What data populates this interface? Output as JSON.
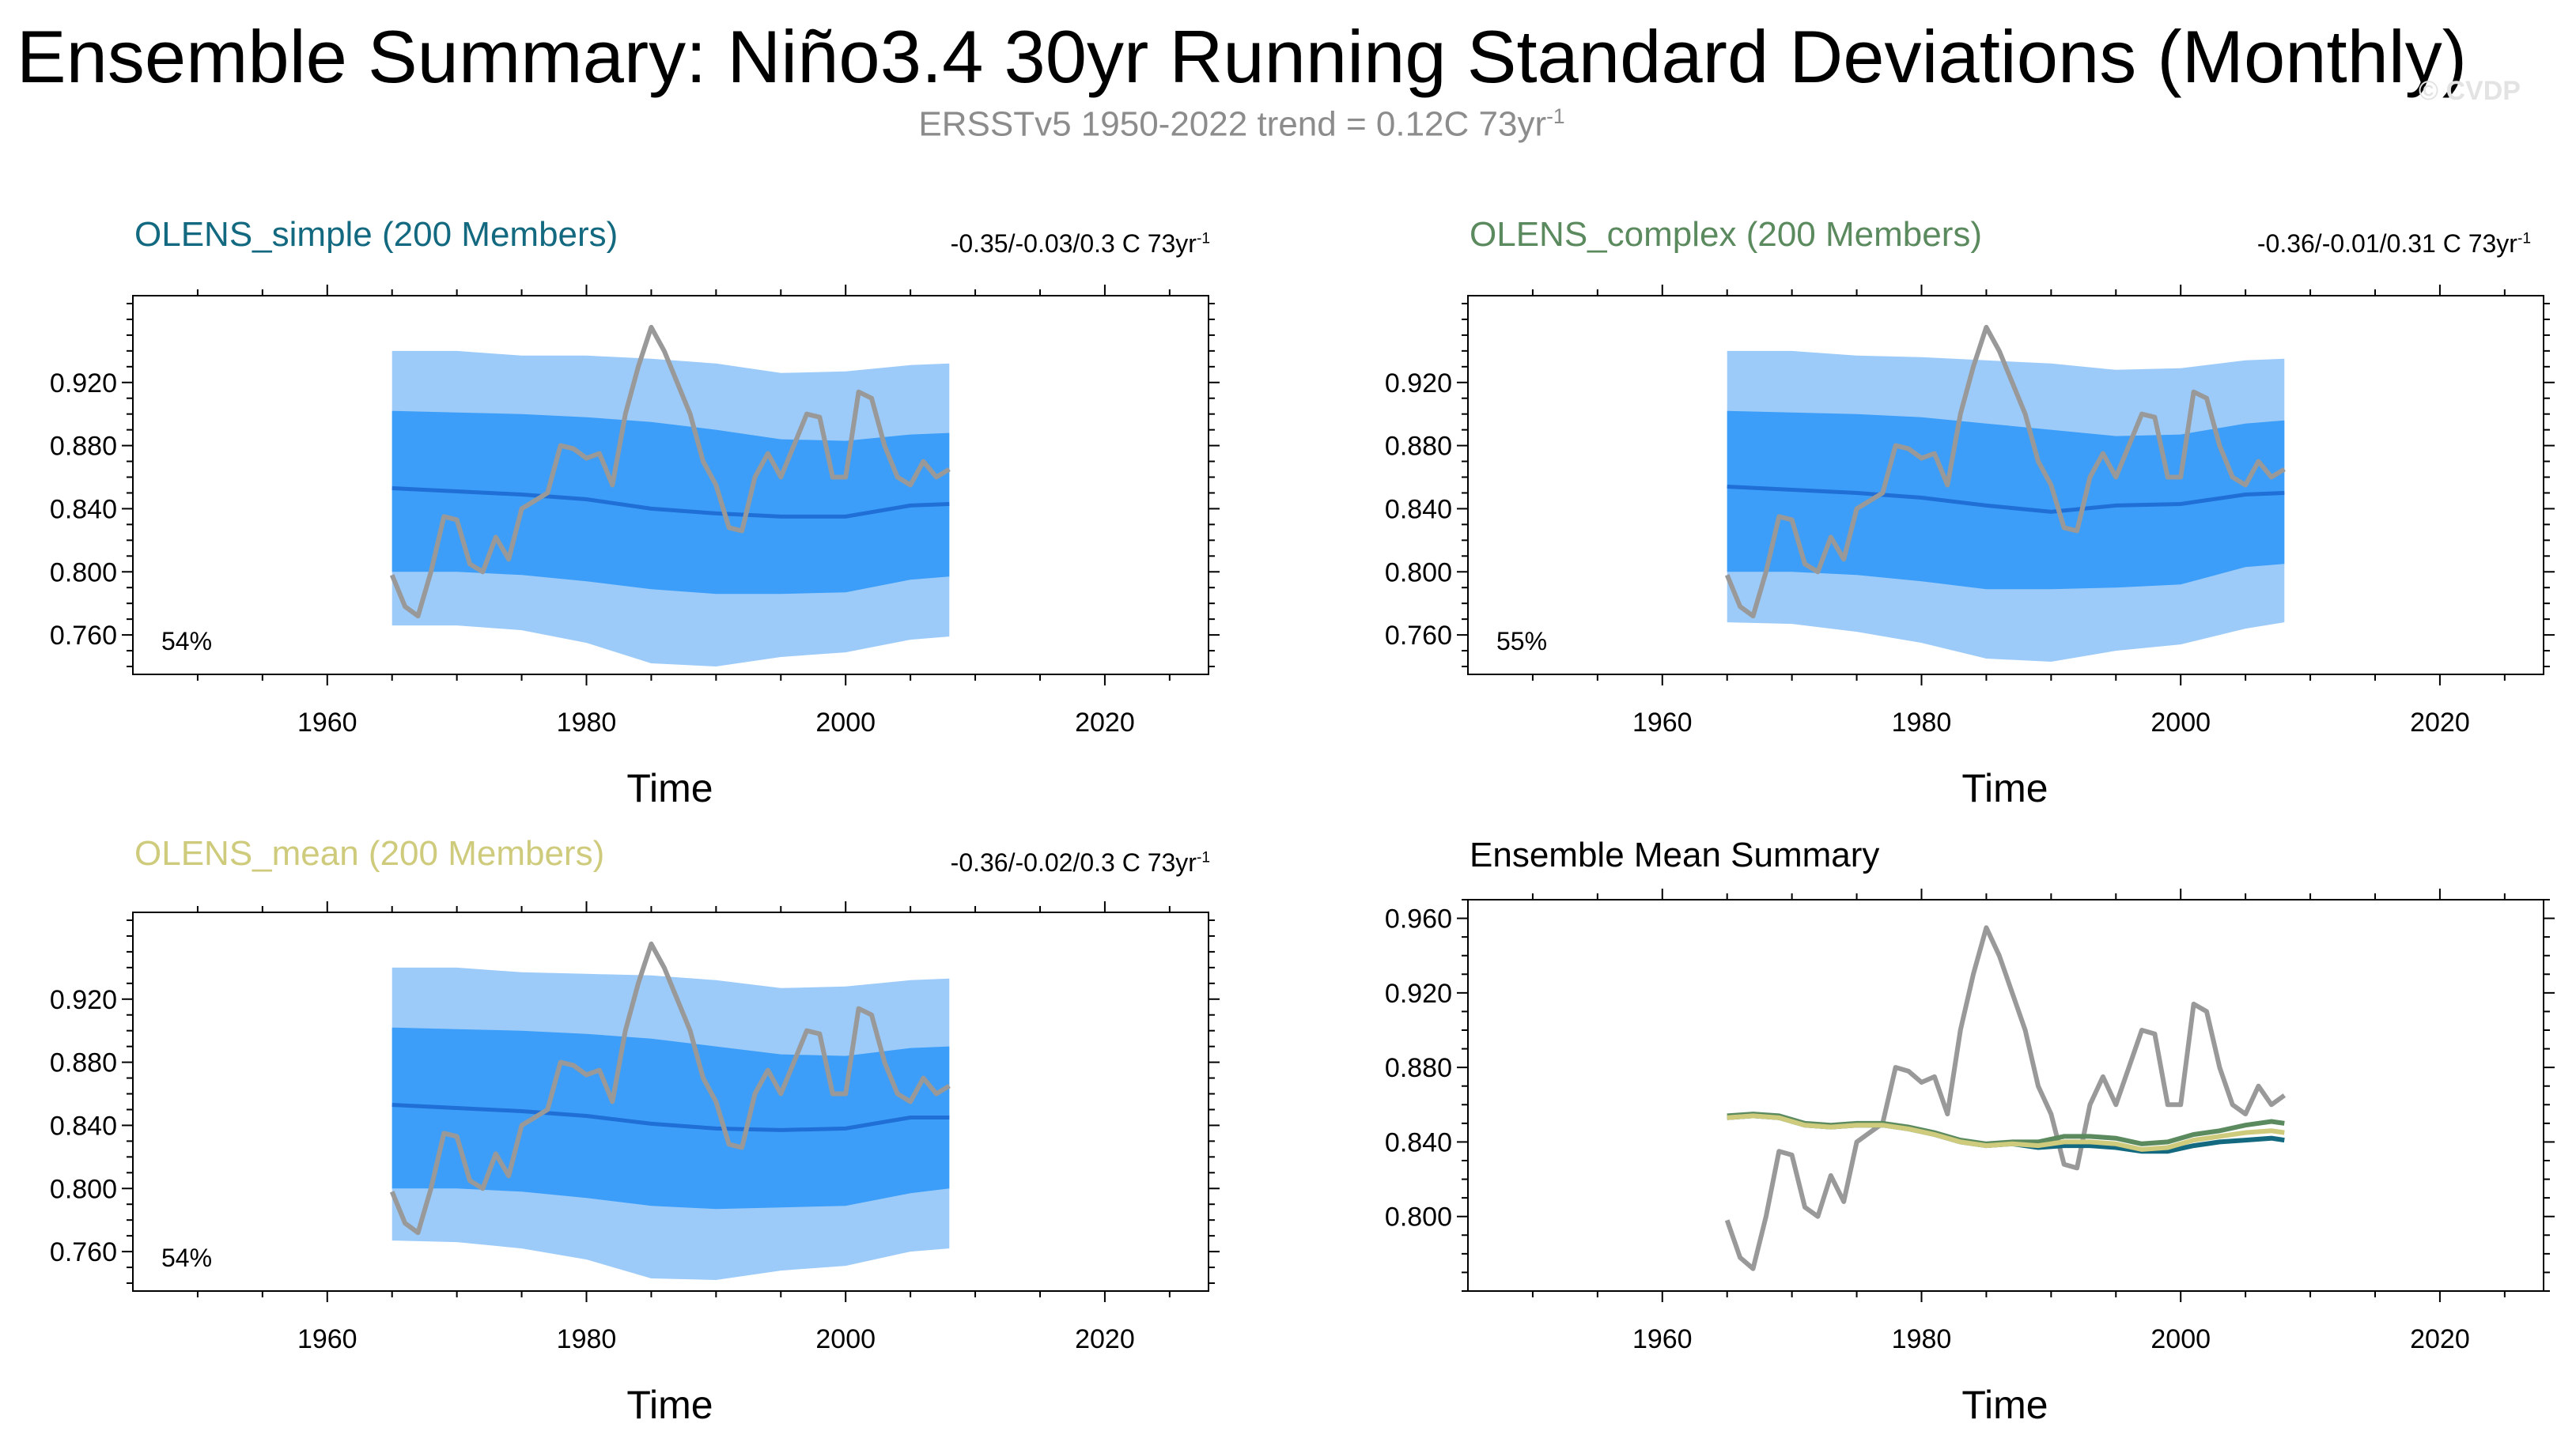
{
  "header": {
    "title": "Ensemble Summary: Niño3.4 30yr Running Standard Deviations (Monthly)",
    "subtitle_text": "ERSSTv5 1950-2022 trend = 0.12C 73yr",
    "subtitle_exp": "-1",
    "credit": "© CVDP"
  },
  "colors": {
    "outer_band": "#9ccbfa",
    "inner_band": "#3c9ef8",
    "ens_mean_line": "#1f6fd6",
    "obs": "#999999",
    "olens_simple": "#13697f",
    "olens_complex": "#5b8a5e",
    "olens_mean": "#cfcb7c"
  },
  "panels": [
    {
      "title": "OLENS_simple (200 Members)",
      "title_color": "#13697f",
      "stats": "-0.35/-0.03/0.3 C 73yr",
      "stats_exp": "-1",
      "percent": "54%",
      "xlabel": "Time"
    },
    {
      "title": "OLENS_complex (200 Members)",
      "title_color": "#5b8a5e",
      "stats": "-0.36/-0.01/0.31 C 73yr",
      "stats_exp": "-1",
      "percent": "55%",
      "xlabel": "Time"
    },
    {
      "title": "OLENS_mean (200 Members)",
      "title_color": "#cfcb7c",
      "stats": "-0.36/-0.02/0.3 C 73yr",
      "stats_exp": "-1",
      "percent": "54%",
      "xlabel": "Time"
    },
    {
      "title": "Ensemble Mean Summary",
      "title_color": "#000000",
      "xlabel": "Time"
    }
  ],
  "chart_data": [
    {
      "type": "area",
      "title": "OLENS_simple (200 Members)",
      "xlabel": "Time",
      "ylabel": "",
      "xlim": [
        1945,
        2028
      ],
      "ylim": [
        0.735,
        0.975
      ],
      "xticks": [
        1960,
        1980,
        2000,
        2020
      ],
      "yticks": [
        0.76,
        0.8,
        0.84,
        0.88,
        0.92
      ],
      "ytick_labels": [
        "0.760",
        "0.800",
        "0.840",
        "0.880",
        "0.920"
      ],
      "x": [
        1965,
        1970,
        1975,
        1980,
        1985,
        1990,
        1995,
        2000,
        2005,
        2008
      ],
      "outer_upper": [
        0.94,
        0.94,
        0.937,
        0.937,
        0.935,
        0.932,
        0.926,
        0.927,
        0.931,
        0.932
      ],
      "inner_upper": [
        0.902,
        0.901,
        0.9,
        0.898,
        0.895,
        0.89,
        0.884,
        0.883,
        0.887,
        0.888
      ],
      "ens_mean": [
        0.853,
        0.851,
        0.849,
        0.846,
        0.84,
        0.837,
        0.835,
        0.835,
        0.842,
        0.843
      ],
      "inner_lower": [
        0.8,
        0.8,
        0.798,
        0.794,
        0.789,
        0.786,
        0.786,
        0.787,
        0.795,
        0.797
      ],
      "outer_lower": [
        0.766,
        0.766,
        0.763,
        0.755,
        0.742,
        0.74,
        0.746,
        0.749,
        0.757,
        0.759
      ],
      "obs_x": [
        1965,
        1966,
        1967,
        1968,
        1969,
        1970,
        1971,
        1972,
        1973,
        1974,
        1975,
        1976,
        1977,
        1978,
        1979,
        1980,
        1981,
        1982,
        1983,
        1984,
        1985,
        1986,
        1987,
        1988,
        1989,
        1990,
        1991,
        1992,
        1993,
        1994,
        1995,
        1996,
        1997,
        1998,
        1999,
        2000,
        2001,
        2002,
        2003,
        2004,
        2005,
        2006,
        2007,
        2008
      ],
      "obs_y": [
        0.798,
        0.778,
        0.772,
        0.8,
        0.835,
        0.833,
        0.805,
        0.8,
        0.822,
        0.808,
        0.84,
        0.845,
        0.85,
        0.88,
        0.878,
        0.872,
        0.875,
        0.855,
        0.9,
        0.93,
        0.955,
        0.94,
        0.92,
        0.9,
        0.87,
        0.855,
        0.828,
        0.826,
        0.86,
        0.875,
        0.86,
        0.88,
        0.9,
        0.898,
        0.86,
        0.86,
        0.914,
        0.91,
        0.88,
        0.86,
        0.855,
        0.87,
        0.86,
        0.865
      ],
      "annotation": "54%"
    },
    {
      "type": "area",
      "title": "OLENS_complex (200 Members)",
      "xlabel": "Time",
      "ylabel": "",
      "xlim": [
        1945,
        2028
      ],
      "ylim": [
        0.735,
        0.975
      ],
      "xticks": [
        1960,
        1980,
        2000,
        2020
      ],
      "yticks": [
        0.76,
        0.8,
        0.84,
        0.88,
        0.92
      ],
      "ytick_labels": [
        "0.760",
        "0.800",
        "0.840",
        "0.880",
        "0.920"
      ],
      "x": [
        1965,
        1970,
        1975,
        1980,
        1985,
        1990,
        1995,
        2000,
        2005,
        2008
      ],
      "outer_upper": [
        0.94,
        0.94,
        0.937,
        0.936,
        0.934,
        0.932,
        0.928,
        0.929,
        0.934,
        0.935
      ],
      "inner_upper": [
        0.902,
        0.901,
        0.9,
        0.898,
        0.894,
        0.89,
        0.886,
        0.887,
        0.894,
        0.896
      ],
      "ens_mean": [
        0.854,
        0.852,
        0.85,
        0.847,
        0.842,
        0.838,
        0.842,
        0.843,
        0.849,
        0.85
      ],
      "inner_lower": [
        0.8,
        0.8,
        0.798,
        0.794,
        0.789,
        0.789,
        0.79,
        0.792,
        0.803,
        0.805
      ],
      "outer_lower": [
        0.768,
        0.767,
        0.762,
        0.755,
        0.745,
        0.743,
        0.75,
        0.754,
        0.764,
        0.768
      ],
      "obs_x": [
        1965,
        1966,
        1967,
        1968,
        1969,
        1970,
        1971,
        1972,
        1973,
        1974,
        1975,
        1976,
        1977,
        1978,
        1979,
        1980,
        1981,
        1982,
        1983,
        1984,
        1985,
        1986,
        1987,
        1988,
        1989,
        1990,
        1991,
        1992,
        1993,
        1994,
        1995,
        1996,
        1997,
        1998,
        1999,
        2000,
        2001,
        2002,
        2003,
        2004,
        2005,
        2006,
        2007,
        2008
      ],
      "obs_y": [
        0.798,
        0.778,
        0.772,
        0.8,
        0.835,
        0.833,
        0.805,
        0.8,
        0.822,
        0.808,
        0.84,
        0.845,
        0.85,
        0.88,
        0.878,
        0.872,
        0.875,
        0.855,
        0.9,
        0.93,
        0.955,
        0.94,
        0.92,
        0.9,
        0.87,
        0.855,
        0.828,
        0.826,
        0.86,
        0.875,
        0.86,
        0.88,
        0.9,
        0.898,
        0.86,
        0.86,
        0.914,
        0.91,
        0.88,
        0.86,
        0.855,
        0.87,
        0.86,
        0.865
      ],
      "annotation": "55%"
    },
    {
      "type": "area",
      "title": "OLENS_mean (200 Members)",
      "xlabel": "Time",
      "ylabel": "",
      "xlim": [
        1945,
        2028
      ],
      "ylim": [
        0.735,
        0.975
      ],
      "xticks": [
        1960,
        1980,
        2000,
        2020
      ],
      "yticks": [
        0.76,
        0.8,
        0.84,
        0.88,
        0.92
      ],
      "ytick_labels": [
        "0.760",
        "0.800",
        "0.840",
        "0.880",
        "0.920"
      ],
      "x": [
        1965,
        1970,
        1975,
        1980,
        1985,
        1990,
        1995,
        2000,
        2005,
        2008
      ],
      "outer_upper": [
        0.94,
        0.94,
        0.937,
        0.936,
        0.935,
        0.932,
        0.927,
        0.928,
        0.932,
        0.933
      ],
      "inner_upper": [
        0.902,
        0.901,
        0.9,
        0.898,
        0.895,
        0.89,
        0.885,
        0.884,
        0.889,
        0.89
      ],
      "ens_mean": [
        0.853,
        0.851,
        0.849,
        0.846,
        0.841,
        0.838,
        0.837,
        0.838,
        0.845,
        0.845
      ],
      "inner_lower": [
        0.8,
        0.8,
        0.798,
        0.794,
        0.789,
        0.787,
        0.788,
        0.789,
        0.797,
        0.8
      ],
      "outer_lower": [
        0.767,
        0.766,
        0.762,
        0.755,
        0.743,
        0.742,
        0.748,
        0.751,
        0.76,
        0.762
      ],
      "obs_x": [
        1965,
        1966,
        1967,
        1968,
        1969,
        1970,
        1971,
        1972,
        1973,
        1974,
        1975,
        1976,
        1977,
        1978,
        1979,
        1980,
        1981,
        1982,
        1983,
        1984,
        1985,
        1986,
        1987,
        1988,
        1989,
        1990,
        1991,
        1992,
        1993,
        1994,
        1995,
        1996,
        1997,
        1998,
        1999,
        2000,
        2001,
        2002,
        2003,
        2004,
        2005,
        2006,
        2007,
        2008
      ],
      "obs_y": [
        0.798,
        0.778,
        0.772,
        0.8,
        0.835,
        0.833,
        0.805,
        0.8,
        0.822,
        0.808,
        0.84,
        0.845,
        0.85,
        0.88,
        0.878,
        0.872,
        0.875,
        0.855,
        0.9,
        0.93,
        0.955,
        0.94,
        0.92,
        0.9,
        0.87,
        0.855,
        0.828,
        0.826,
        0.86,
        0.875,
        0.86,
        0.88,
        0.9,
        0.898,
        0.86,
        0.86,
        0.914,
        0.91,
        0.88,
        0.86,
        0.855,
        0.87,
        0.86,
        0.865
      ],
      "annotation": "54%"
    },
    {
      "type": "line",
      "title": "Ensemble Mean Summary",
      "xlabel": "Time",
      "ylabel": "",
      "xlim": [
        1945,
        2028
      ],
      "ylim": [
        0.76,
        0.97
      ],
      "xticks": [
        1960,
        1980,
        2000,
        2020
      ],
      "yticks": [
        0.8,
        0.84,
        0.88,
        0.92,
        0.96
      ],
      "ytick_labels": [
        "0.800",
        "0.840",
        "0.880",
        "0.920",
        "0.960"
      ],
      "x": [
        1965,
        1967,
        1969,
        1971,
        1973,
        1975,
        1977,
        1979,
        1981,
        1983,
        1985,
        1987,
        1989,
        1991,
        1993,
        1995,
        1997,
        1999,
        2001,
        2003,
        2005,
        2007,
        2008
      ],
      "series": [
        {
          "name": "OLENS_simple",
          "color": "#13697f",
          "values": [
            0.853,
            0.854,
            0.853,
            0.849,
            0.848,
            0.849,
            0.849,
            0.847,
            0.844,
            0.84,
            0.838,
            0.839,
            0.837,
            0.838,
            0.838,
            0.837,
            0.835,
            0.835,
            0.838,
            0.84,
            0.841,
            0.842,
            0.841
          ]
        },
        {
          "name": "OLENS_complex",
          "color": "#5b8a5e",
          "values": [
            0.854,
            0.855,
            0.854,
            0.85,
            0.849,
            0.85,
            0.85,
            0.848,
            0.845,
            0.841,
            0.839,
            0.84,
            0.84,
            0.843,
            0.843,
            0.842,
            0.839,
            0.84,
            0.844,
            0.846,
            0.849,
            0.851,
            0.85
          ]
        },
        {
          "name": "OLENS_mean",
          "color": "#cfcb7c",
          "values": [
            0.853,
            0.854,
            0.853,
            0.849,
            0.848,
            0.849,
            0.849,
            0.847,
            0.844,
            0.84,
            0.838,
            0.839,
            0.838,
            0.84,
            0.84,
            0.839,
            0.836,
            0.837,
            0.841,
            0.843,
            0.845,
            0.846,
            0.845
          ]
        }
      ],
      "obs_x": [
        1965,
        1966,
        1967,
        1968,
        1969,
        1970,
        1971,
        1972,
        1973,
        1974,
        1975,
        1976,
        1977,
        1978,
        1979,
        1980,
        1981,
        1982,
        1983,
        1984,
        1985,
        1986,
        1987,
        1988,
        1989,
        1990,
        1991,
        1992,
        1993,
        1994,
        1995,
        1996,
        1997,
        1998,
        1999,
        2000,
        2001,
        2002,
        2003,
        2004,
        2005,
        2006,
        2007,
        2008
      ],
      "obs_y": [
        0.798,
        0.778,
        0.772,
        0.8,
        0.835,
        0.833,
        0.805,
        0.8,
        0.822,
        0.808,
        0.84,
        0.845,
        0.85,
        0.88,
        0.878,
        0.872,
        0.875,
        0.855,
        0.9,
        0.93,
        0.955,
        0.94,
        0.92,
        0.9,
        0.87,
        0.855,
        0.828,
        0.826,
        0.86,
        0.875,
        0.86,
        0.88,
        0.9,
        0.898,
        0.86,
        0.86,
        0.914,
        0.91,
        0.88,
        0.86,
        0.855,
        0.87,
        0.86,
        0.865
      ]
    }
  ]
}
